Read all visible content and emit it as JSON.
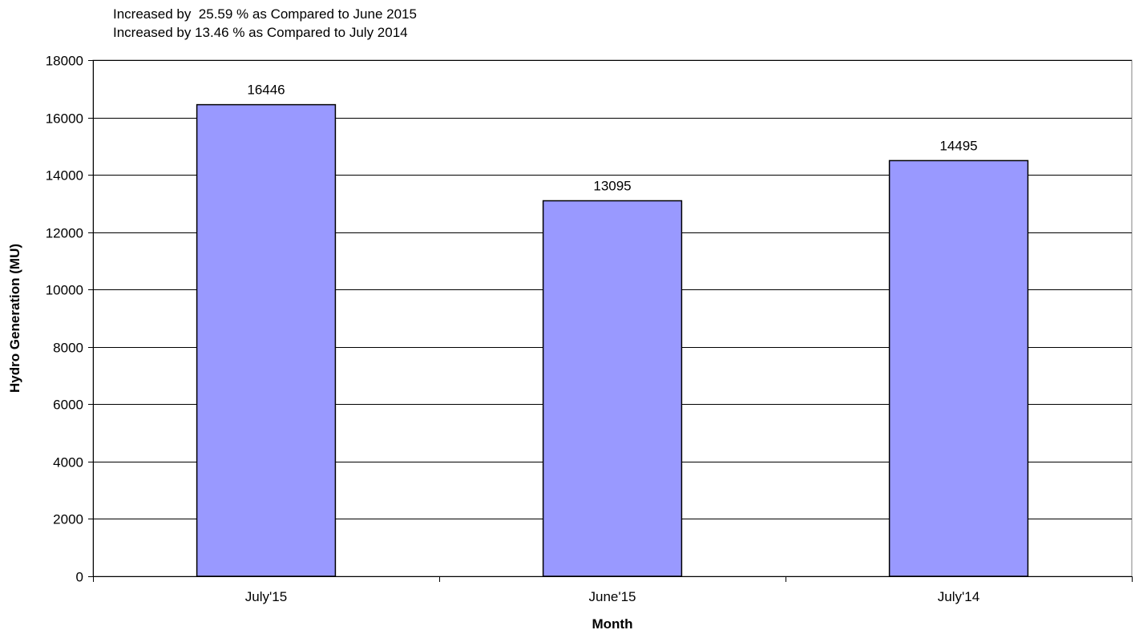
{
  "annotations": [
    "Increased by  25.59 % as Compared to June 2015",
    "Increased by 13.46 % as Compared to July 2014"
  ],
  "chart_data": {
    "type": "bar",
    "categories": [
      "July'15",
      "June'15",
      "July'14"
    ],
    "values": [
      16446,
      13095,
      14495
    ],
    "data_labels": [
      "16446",
      "13095",
      "14495"
    ],
    "xlabel": "Month",
    "ylabel": "Hydro Generation (MU)",
    "ylim": [
      0,
      18000
    ],
    "yticks": [
      0,
      2000,
      4000,
      6000,
      8000,
      10000,
      12000,
      14000,
      16000,
      18000
    ],
    "grid": true,
    "legend": "none",
    "bar_color": "#9999ff",
    "bar_edge_color": "#000000",
    "gridline_color": "#000000"
  }
}
